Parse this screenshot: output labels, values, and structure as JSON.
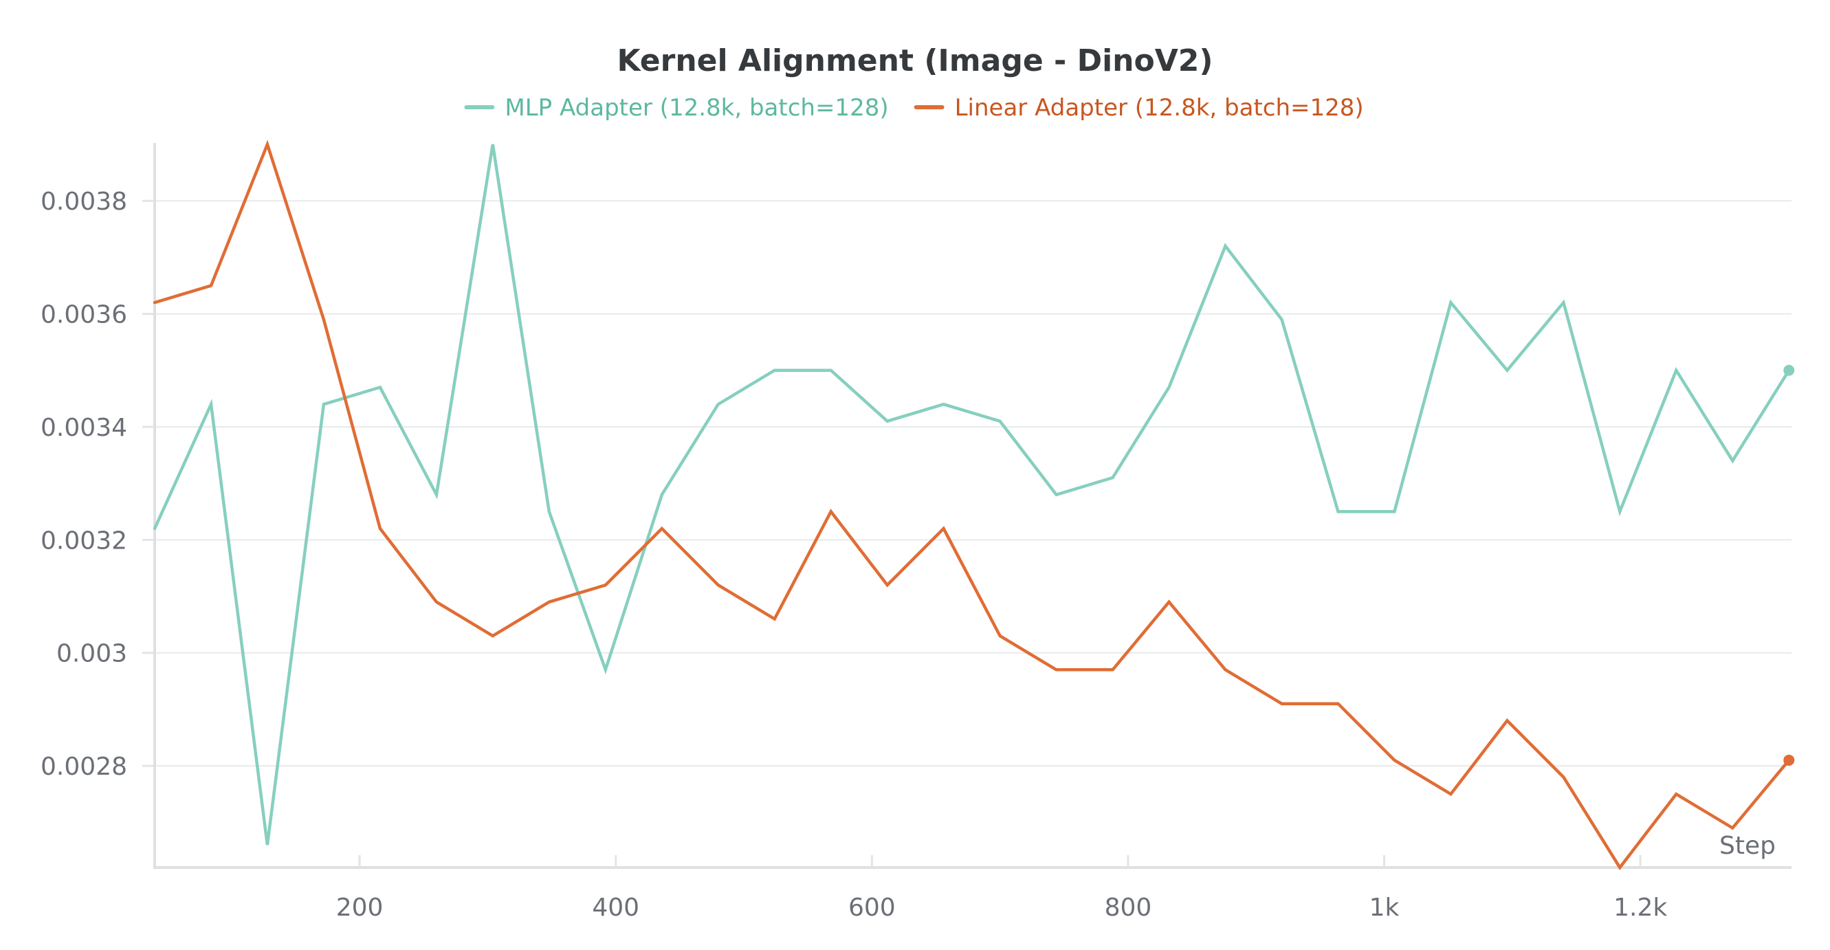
{
  "chart_data": {
    "type": "line",
    "title": "Kernel Alignment (Image - DinoV2)",
    "xlabel": "Step",
    "ylabel": "",
    "xlim": [
      40,
      1318
    ],
    "ylim": [
      0.00262,
      0.0039
    ],
    "xticks": [
      200,
      400,
      600,
      800,
      1000,
      1200
    ],
    "xtick_labels": [
      "200",
      "400",
      "600",
      "800",
      "1k",
      "1.2k"
    ],
    "yticks": [
      0.0028,
      0.003,
      0.0032,
      0.0034,
      0.0036,
      0.0038
    ],
    "ytick_labels": [
      "0.0028",
      "0.003",
      "0.0032",
      "0.0034",
      "0.0036",
      "0.0038"
    ],
    "grid": true,
    "legend_position": "top-center",
    "x": [
      40,
      84,
      128,
      172,
      216,
      260,
      304,
      348,
      392,
      436,
      480,
      524,
      568,
      612,
      656,
      700,
      744,
      788,
      832,
      876,
      920,
      964,
      1008,
      1052,
      1096,
      1140,
      1184,
      1228,
      1272,
      1316
    ],
    "series": [
      {
        "name": "MLP Adapter (12.8k, batch=128)",
        "color": "#86cfbf",
        "legend_text_color": "#5cb89f",
        "values": [
          0.00322,
          0.00344,
          0.00266,
          0.00344,
          0.00347,
          0.00328,
          0.0039,
          0.00325,
          0.00297,
          0.00328,
          0.00344,
          0.0035,
          0.0035,
          0.00341,
          0.00344,
          0.00341,
          0.00328,
          0.00331,
          0.00347,
          0.00372,
          0.00359,
          0.00325,
          0.00325,
          0.00362,
          0.0035,
          0.00362,
          0.00325,
          0.0035,
          0.00334,
          0.0035
        ]
      },
      {
        "name": "Linear Adapter (12.8k, batch=128)",
        "color": "#e06d35",
        "legend_text_color": "#c9561f",
        "values": [
          0.00362,
          0.00365,
          0.0039,
          0.00359,
          0.00322,
          0.00309,
          0.00303,
          0.00309,
          0.00312,
          0.00322,
          0.00312,
          0.00306,
          0.00325,
          0.00312,
          0.00322,
          0.00303,
          0.00297,
          0.00297,
          0.00309,
          0.00297,
          0.00291,
          0.00291,
          0.00281,
          0.00275,
          0.00288,
          0.00278,
          0.00262,
          0.00275,
          0.00269,
          0.00281
        ]
      }
    ]
  }
}
